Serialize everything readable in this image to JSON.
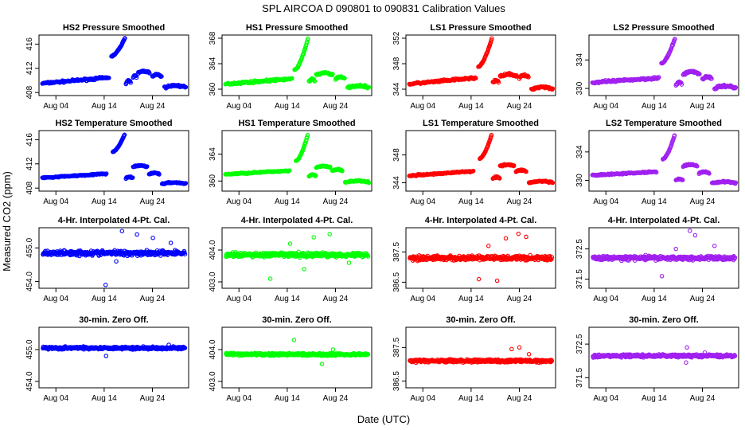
{
  "title": "SPL   AIRCOA D   090801 to 090831   Calibration Values",
  "ylabel": "Measured CO2 (ppm)",
  "xlabel": "Date (UTC)",
  "colors": {
    "HS2": "#0000ff",
    "HS1": "#00ff00",
    "LS1": "#ff0000",
    "LS2": "#a020f0"
  },
  "chart_data": [
    {
      "type": "scatter",
      "row": 0,
      "title": "HS2 Pressure Smoothed",
      "series": "HS2",
      "yticks": [
        408,
        412,
        416
      ],
      "ylim": [
        407.5,
        417.5
      ],
      "xticks": [
        "Aug 04",
        "Aug 14",
        "Aug 24"
      ],
      "pattern": {
        "base": 409.5,
        "slope": 0.07,
        "noise": 0.2,
        "spike": [
          [
            15.5,
            414
          ],
          [
            18.3,
            417
          ]
        ],
        "gap": [
          [
            15,
            15.3
          ]
        ],
        "after": [
          [
            18.5,
            19.6,
            409.6
          ],
          [
            20,
            20.8,
            410.4
          ],
          [
            21,
            23.5,
            411.2
          ],
          [
            24,
            26,
            410.6
          ],
          [
            26.5,
            31,
            408.8
          ]
        ]
      }
    },
    {
      "type": "scatter",
      "row": 0,
      "title": "HS1 Pressure Smoothed",
      "series": "HS1",
      "yticks": [
        360,
        364,
        368
      ],
      "ylim": [
        359,
        368.5
      ],
      "xticks": [
        "Aug 04",
        "Aug 14",
        "Aug 24"
      ],
      "pattern": {
        "base": 360.8,
        "slope": 0.06,
        "noise": 0.2,
        "spike": [
          [
            15.5,
            363
          ],
          [
            18.3,
            368
          ]
        ],
        "gap": [
          [
            15,
            15.3
          ]
        ],
        "after": [
          [
            18.5,
            19.8,
            361.2
          ],
          [
            20,
            23.5,
            362.2
          ],
          [
            24,
            26,
            361.6
          ],
          [
            26.5,
            31,
            360.2
          ]
        ]
      }
    },
    {
      "type": "scatter",
      "row": 0,
      "title": "LS1 Pressure Smoothed",
      "series": "LS1",
      "yticks": [
        344,
        348,
        352
      ],
      "ylim": [
        343,
        352.5
      ],
      "xticks": [
        "Aug 04",
        "Aug 14",
        "Aug 24"
      ],
      "pattern": {
        "base": 344.8,
        "slope": 0.07,
        "noise": 0.2,
        "spike": [
          [
            15.5,
            347.5
          ],
          [
            18.3,
            352
          ]
        ],
        "gap": [
          [
            15,
            15.3
          ]
        ],
        "after": [
          [
            18.5,
            19.8,
            345
          ],
          [
            20,
            23.5,
            346
          ],
          [
            24,
            26,
            345.8
          ],
          [
            26.5,
            31,
            344
          ]
        ]
      }
    },
    {
      "type": "scatter",
      "row": 0,
      "title": "LS2 Pressure Smoothed",
      "series": "LS2",
      "yticks": [
        330,
        334
      ],
      "ylim": [
        329,
        337.5
      ],
      "xticks": [
        "Aug 04",
        "Aug 14",
        "Aug 24"
      ],
      "pattern": {
        "base": 330.8,
        "slope": 0.05,
        "noise": 0.2,
        "spike": [
          [
            15.5,
            333.5
          ],
          [
            18.3,
            337
          ]
        ],
        "gap": [
          [
            15,
            15.3
          ]
        ],
        "after": [
          [
            18.5,
            19.8,
            330.5
          ],
          [
            20,
            23.5,
            332
          ],
          [
            24,
            26,
            331.3
          ],
          [
            26.5,
            31,
            330
          ]
        ]
      }
    },
    {
      "type": "scatter",
      "row": 1,
      "title": "HS2 Temperature Smoothed",
      "series": "HS2",
      "yticks": [
        408,
        412,
        416
      ],
      "ylim": [
        407.5,
        417.5
      ],
      "xticks": [
        "Aug 04",
        "Aug 14",
        "Aug 24"
      ],
      "pattern": {
        "base": 409.7,
        "slope": 0.05,
        "noise": 0.12,
        "spike": [
          [
            15.8,
            414
          ],
          [
            18.3,
            417
          ]
        ],
        "gap": [
          [
            14.5,
            15.5
          ]
        ],
        "after": [
          [
            18.5,
            20,
            409.6
          ],
          [
            20,
            23,
            411.5
          ],
          [
            23.3,
            25.5,
            410.3
          ],
          [
            26,
            31,
            408.7
          ]
        ]
      }
    },
    {
      "type": "scatter",
      "row": 1,
      "title": "HS1 Temperature Smoothed",
      "series": "HS1",
      "yticks": [
        360,
        364
      ],
      "ylim": [
        358.5,
        367.5
      ],
      "xticks": [
        "Aug 04",
        "Aug 14",
        "Aug 24"
      ],
      "pattern": {
        "base": 361,
        "slope": 0.04,
        "noise": 0.12,
        "spike": [
          [
            15.8,
            363
          ],
          [
            18.3,
            367
          ]
        ],
        "gap": [
          [
            14.5,
            15.5
          ]
        ],
        "after": [
          [
            18.5,
            20,
            360.7
          ],
          [
            20,
            23,
            362
          ],
          [
            23.3,
            25.5,
            361.5
          ],
          [
            26,
            31,
            359.8
          ]
        ]
      }
    },
    {
      "type": "scatter",
      "row": 1,
      "title": "LS1 Temperature Smoothed",
      "series": "LS1",
      "yticks": [
        344,
        348
      ],
      "ylim": [
        342.8,
        351.5
      ],
      "xticks": [
        "Aug 04",
        "Aug 14",
        "Aug 24"
      ],
      "pattern": {
        "base": 345,
        "slope": 0.05,
        "noise": 0.12,
        "spike": [
          [
            15.8,
            347.5
          ],
          [
            18.3,
            351
          ]
        ],
        "gap": [
          [
            14.5,
            15.5
          ]
        ],
        "after": [
          [
            18.5,
            20,
            344.6
          ],
          [
            20,
            23,
            346.4
          ],
          [
            23.3,
            25.5,
            345.6
          ],
          [
            26,
            31,
            344
          ]
        ]
      }
    },
    {
      "type": "scatter",
      "row": 1,
      "title": "LS2 Temperature Smoothed",
      "series": "LS2",
      "yticks": [
        330,
        334
      ],
      "ylim": [
        328.5,
        337
      ],
      "xticks": [
        "Aug 04",
        "Aug 14",
        "Aug 24"
      ],
      "pattern": {
        "base": 330.7,
        "slope": 0.04,
        "noise": 0.12,
        "spike": [
          [
            15.8,
            333
          ],
          [
            18.3,
            336.5
          ]
        ],
        "gap": [
          [
            14.5,
            15.5
          ]
        ],
        "after": [
          [
            18.5,
            20,
            330
          ],
          [
            20,
            23,
            332
          ],
          [
            23.3,
            25.5,
            331
          ],
          [
            26,
            31,
            329.6
          ]
        ]
      }
    },
    {
      "type": "scatter",
      "row": 2,
      "title": "4-Hr. Interpolated 4-Pt. Cal.",
      "series": "HS2",
      "yticks": [
        454,
        455
      ],
      "ytickLabels": [
        "454.0",
        "455.0"
      ],
      "ylim": [
        453.8,
        455.6
      ],
      "xticks": [
        "Aug 04",
        "Aug 14",
        "Aug 24"
      ],
      "flat": {
        "center": 454.85,
        "band": 0.09,
        "outliers": [
          [
            14.3,
            453.9
          ],
          [
            17.7,
            455.5
          ],
          [
            20.8,
            455.4
          ],
          [
            24.1,
            455.3
          ],
          [
            16.5,
            454.6
          ],
          [
            27.8,
            455.15
          ]
        ]
      }
    },
    {
      "type": "scatter",
      "row": 2,
      "title": "4-Hr. Interpolated 4-Pt. Cal.",
      "series": "HS1",
      "yticks": [
        403,
        404
      ],
      "ytickLabels": [
        "403.0",
        "404.0"
      ],
      "ylim": [
        402.8,
        404.7
      ],
      "xticks": [
        "Aug 04",
        "Aug 14",
        "Aug 24"
      ],
      "flat": {
        "center": 403.85,
        "band": 0.09,
        "outliers": [
          [
            10.5,
            403.1
          ],
          [
            19.5,
            404.4
          ],
          [
            22.8,
            404.5
          ],
          [
            17.5,
            403.4
          ],
          [
            26.8,
            403.6
          ],
          [
            14.6,
            404.2
          ]
        ]
      }
    },
    {
      "type": "scatter",
      "row": 2,
      "title": "4-Hr. Interpolated 4-Pt. Cal.",
      "series": "LS1",
      "yticks": [
        386.5,
        387.5
      ],
      "ytickLabels": [
        "386.5",
        "387.5"
      ],
      "ylim": [
        386.3,
        388.3
      ],
      "xticks": [
        "Aug 04",
        "Aug 14",
        "Aug 24"
      ],
      "flat": {
        "center": 387.3,
        "band": 0.09,
        "outliers": [
          [
            15.6,
            386.6
          ],
          [
            19.4,
            386.55
          ],
          [
            21.2,
            387.95
          ],
          [
            23.8,
            388.1
          ],
          [
            25.4,
            388.0
          ],
          [
            17.6,
            387.7
          ]
        ]
      }
    },
    {
      "type": "scatter",
      "row": 2,
      "title": "4-Hr. Interpolated 4-Pt. Cal.",
      "series": "LS2",
      "yticks": [
        371.5,
        372.5
      ],
      "ytickLabels": [
        "371.5",
        "372.5"
      ],
      "ylim": [
        371.2,
        373.2
      ],
      "xticks": [
        "Aug 04",
        "Aug 14",
        "Aug 24"
      ],
      "flat": {
        "center": 372.2,
        "band": 0.08,
        "outliers": [
          [
            15.6,
            371.6
          ],
          [
            21.4,
            373.1
          ],
          [
            22.5,
            372.95
          ],
          [
            18.5,
            372.5
          ],
          [
            26.5,
            372.6
          ],
          [
            12.2,
            372.3
          ]
        ]
      }
    },
    {
      "type": "scatter",
      "row": 3,
      "title": "30-min. Zero Off.",
      "series": "HS2",
      "yticks": [
        454,
        455
      ],
      "ytickLabels": [
        "454.0",
        "455.0"
      ],
      "ylim": [
        453.8,
        455.7
      ],
      "xticks": [
        "Aug 04",
        "Aug 14",
        "Aug 24"
      ],
      "flat": {
        "center": 455.05,
        "band": 0.05,
        "outliers": [
          [
            14.4,
            454.8
          ],
          [
            22.1,
            455.1
          ],
          [
            27.4,
            455.15
          ]
        ]
      }
    },
    {
      "type": "scatter",
      "row": 3,
      "title": "30-min. Zero Off.",
      "series": "HS1",
      "yticks": [
        403,
        404
      ],
      "ytickLabels": [
        "403.0",
        "404.0"
      ],
      "ylim": [
        402.8,
        404.7
      ],
      "xticks": [
        "Aug 04",
        "Aug 14",
        "Aug 24"
      ],
      "flat": {
        "center": 403.85,
        "band": 0.05,
        "outliers": [
          [
            15.4,
            404.3
          ],
          [
            21.2,
            403.55
          ],
          [
            23.5,
            404
          ]
        ]
      }
    },
    {
      "type": "scatter",
      "row": 3,
      "title": "30-min. Zero Off.",
      "series": "LS1",
      "yticks": [
        386.5,
        387.5
      ],
      "ytickLabels": [
        "386.5",
        "387.5"
      ],
      "ylim": [
        386.3,
        388.1
      ],
      "xticks": [
        "Aug 04",
        "Aug 14",
        "Aug 24"
      ],
      "flat": {
        "center": 387.1,
        "band": 0.05,
        "outliers": [
          [
            22.4,
            387.45
          ],
          [
            24,
            387.5
          ],
          [
            26,
            387.3
          ]
        ]
      }
    },
    {
      "type": "scatter",
      "row": 3,
      "title": "30-min. Zero Off.",
      "series": "LS2",
      "yticks": [
        371.5,
        372.5
      ],
      "ytickLabels": [
        "371.5",
        "372.5"
      ],
      "ylim": [
        371.2,
        373
      ],
      "xticks": [
        "Aug 04",
        "Aug 14",
        "Aug 24"
      ],
      "flat": {
        "center": 372.15,
        "band": 0.05,
        "outliers": [
          [
            20.8,
            372.4
          ],
          [
            20.6,
            371.95
          ],
          [
            24.5,
            372.25
          ]
        ]
      }
    }
  ]
}
